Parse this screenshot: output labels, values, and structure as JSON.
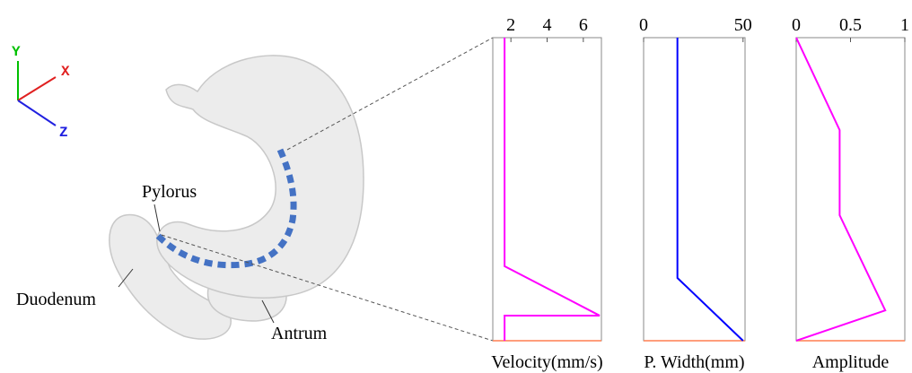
{
  "chart_data": [
    {
      "type": "line",
      "xlabel": "Velocity(mm/s)",
      "xlim": [
        1,
        7
      ],
      "xticks": [
        2,
        4,
        6
      ],
      "plim": [
        0,
        1
      ],
      "bottom_color": "#ff7f50",
      "series": [
        {
          "color": "#ff00ff",
          "values": [
            1.65,
            1.65,
            6.9,
            1.65,
            1.65
          ],
          "positions": [
            0,
            0.754,
            0.917,
            0.917,
            1
          ]
        }
      ]
    },
    {
      "type": "line",
      "xlabel": "P. Width(mm)",
      "xlim": [
        0,
        51
      ],
      "xticks": [
        0,
        50
      ],
      "plim": [
        0,
        1
      ],
      "bottom_color": "#ff7f50",
      "series": [
        {
          "color": "#0000ff",
          "values": [
            17,
            17,
            50
          ],
          "positions": [
            0,
            0.793,
            1
          ]
        }
      ]
    },
    {
      "type": "line",
      "xlabel": "Amplitude",
      "xlim": [
        0,
        1
      ],
      "xticks": [
        0,
        0.5,
        1
      ],
      "plim": [
        0,
        1
      ],
      "bottom_color": "#ff7f50",
      "series": [
        {
          "color": "#ff00ff",
          "values": [
            0,
            0.4,
            0.4,
            0.82,
            0
          ],
          "positions": [
            0,
            0.305,
            0.586,
            0.9,
            1
          ]
        }
      ]
    }
  ],
  "illustration": {
    "labels": [
      "Pylorus",
      "Duodenum",
      "Antrum"
    ],
    "axes": [
      "X",
      "Y",
      "Z"
    ]
  }
}
